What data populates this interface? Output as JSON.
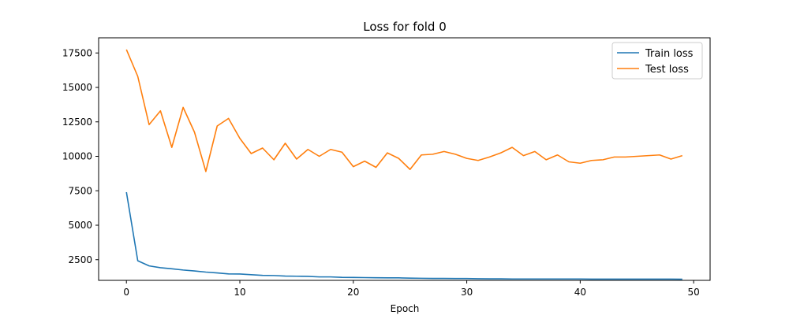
{
  "chart_data": {
    "type": "line",
    "title": "Loss for fold 0",
    "xlabel": "Epoch",
    "ylabel": "",
    "xlim": [
      -2.45,
      51.45
    ],
    "ylim": [
      1000,
      18600
    ],
    "xticks": [
      0,
      10,
      20,
      30,
      40,
      50
    ],
    "yticks": [
      2500,
      5000,
      7500,
      10000,
      12500,
      15000,
      17500
    ],
    "grid": false,
    "legend_position": "top-right",
    "x": [
      0,
      1,
      2,
      3,
      4,
      5,
      6,
      7,
      8,
      9,
      10,
      11,
      12,
      13,
      14,
      15,
      16,
      17,
      18,
      19,
      20,
      21,
      22,
      23,
      24,
      25,
      26,
      27,
      28,
      29,
      30,
      31,
      32,
      33,
      34,
      35,
      36,
      37,
      38,
      39,
      40,
      41,
      42,
      43,
      44,
      45,
      46,
      47,
      48,
      49
    ],
    "series": [
      {
        "name": "Train loss",
        "color": "#1f77b4",
        "values": [
          7400,
          2420,
          2050,
          1920,
          1840,
          1750,
          1680,
          1600,
          1540,
          1470,
          1460,
          1410,
          1360,
          1350,
          1310,
          1300,
          1290,
          1250,
          1250,
          1220,
          1210,
          1200,
          1190,
          1180,
          1180,
          1160,
          1150,
          1140,
          1140,
          1130,
          1130,
          1120,
          1110,
          1110,
          1100,
          1100,
          1100,
          1100,
          1100,
          1100,
          1100,
          1090,
          1090,
          1090,
          1090,
          1090,
          1090,
          1090,
          1090,
          1080
        ]
      },
      {
        "name": "Test loss",
        "color": "#ff7f0e",
        "values": [
          17750,
          15800,
          12300,
          13300,
          10650,
          13550,
          11750,
          8900,
          12200,
          12750,
          11300,
          10200,
          10600,
          9750,
          10950,
          9800,
          10500,
          10000,
          10500,
          10300,
          9250,
          9650,
          9200,
          10250,
          9850,
          9050,
          10100,
          10150,
          10350,
          10150,
          9850,
          9700,
          9950,
          10250,
          10650,
          10050,
          10350,
          9750,
          10100,
          9600,
          9500,
          9700,
          9750,
          9950,
          9950,
          10000,
          10050,
          10100,
          9800,
          10050
        ]
      }
    ]
  }
}
